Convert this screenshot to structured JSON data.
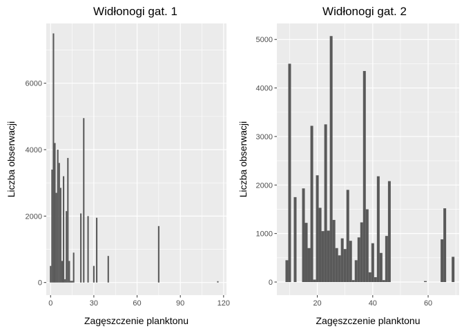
{
  "chart_data": [
    {
      "type": "bar",
      "title": "Widłonogi gat. 1",
      "xlabel": "Zagęszczenie planktonu",
      "ylabel": "Liczba obserwacji",
      "xlim": [
        -3,
        122
      ],
      "ylim": [
        -380,
        7800
      ],
      "xticks": [
        0,
        30,
        60,
        90,
        120
      ],
      "yticks": [
        0,
        2000,
        4000,
        6000
      ],
      "bar_width": 1.0,
      "bar_color": "#595959",
      "panel_background": "#ebebeb",
      "grid_color": "#ffffff",
      "grid": true,
      "values": [
        {
          "x": 0,
          "y": 500
        },
        {
          "x": 1,
          "y": 3400
        },
        {
          "x": 2,
          "y": 7500
        },
        {
          "x": 3,
          "y": 4200
        },
        {
          "x": 4,
          "y": 2700
        },
        {
          "x": 5,
          "y": 4000
        },
        {
          "x": 6,
          "y": 3600
        },
        {
          "x": 7,
          "y": 2850
        },
        {
          "x": 8,
          "y": 650
        },
        {
          "x": 9,
          "y": 3200
        },
        {
          "x": 10,
          "y": 100
        },
        {
          "x": 11,
          "y": 2150
        },
        {
          "x": 12,
          "y": 3750
        },
        {
          "x": 13,
          "y": 650
        },
        {
          "x": 14,
          "y": 50
        },
        {
          "x": 15,
          "y": 50
        },
        {
          "x": 16,
          "y": 900
        },
        {
          "x": 21,
          "y": 2080
        },
        {
          "x": 23,
          "y": 4950
        },
        {
          "x": 26,
          "y": 2000
        },
        {
          "x": 30,
          "y": 500
        },
        {
          "x": 32,
          "y": 1950
        },
        {
          "x": 40,
          "y": 800
        },
        {
          "x": 75,
          "y": 1700
        },
        {
          "x": 116,
          "y": 40
        }
      ]
    },
    {
      "type": "bar",
      "title": "Widłonogi gat. 2",
      "xlabel": "Zagęszczenie planktonu",
      "ylabel": "Liczba obserwacji",
      "xlim": [
        5.4,
        71.2
      ],
      "ylim": [
        -270,
        5330
      ],
      "xticks": [
        20,
        40,
        60
      ],
      "yticks": [
        0,
        1000,
        2000,
        3000,
        4000,
        5000
      ],
      "bar_width": 1.0,
      "bar_color": "#595959",
      "panel_background": "#ebebeb",
      "grid_color": "#ffffff",
      "grid": true,
      "values": [
        {
          "x": 9,
          "y": 450
        },
        {
          "x": 10,
          "y": 4500
        },
        {
          "x": 12,
          "y": 1750
        },
        {
          "x": 15,
          "y": 1930
        },
        {
          "x": 16,
          "y": 1220
        },
        {
          "x": 17,
          "y": 700
        },
        {
          "x": 18,
          "y": 3220
        },
        {
          "x": 19,
          "y": 50
        },
        {
          "x": 20,
          "y": 2200
        },
        {
          "x": 21,
          "y": 1530
        },
        {
          "x": 22,
          "y": 1050
        },
        {
          "x": 23,
          "y": 3250
        },
        {
          "x": 24,
          "y": 1060
        },
        {
          "x": 25,
          "y": 5070
        },
        {
          "x": 26,
          "y": 1280
        },
        {
          "x": 27,
          "y": 700
        },
        {
          "x": 28,
          "y": 550
        },
        {
          "x": 29,
          "y": 900
        },
        {
          "x": 30,
          "y": 680
        },
        {
          "x": 31,
          "y": 1900
        },
        {
          "x": 32,
          "y": 850
        },
        {
          "x": 33,
          "y": 40
        },
        {
          "x": 34,
          "y": 450
        },
        {
          "x": 35,
          "y": 920
        },
        {
          "x": 36,
          "y": 1230
        },
        {
          "x": 37,
          "y": 4350
        },
        {
          "x": 38,
          "y": 1500
        },
        {
          "x": 39,
          "y": 200
        },
        {
          "x": 40,
          "y": 800
        },
        {
          "x": 41,
          "y": 100
        },
        {
          "x": 42,
          "y": 2180
        },
        {
          "x": 43,
          "y": 600
        },
        {
          "x": 44,
          "y": 40
        },
        {
          "x": 45,
          "y": 950
        },
        {
          "x": 46,
          "y": 2080
        },
        {
          "x": 59,
          "y": 20
        },
        {
          "x": 65,
          "y": 880
        },
        {
          "x": 66,
          "y": 1520
        },
        {
          "x": 69,
          "y": 520
        }
      ]
    }
  ]
}
